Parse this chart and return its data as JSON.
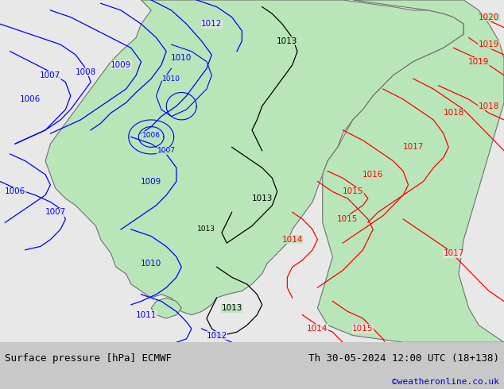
{
  "title_left": "Surface pressure [hPa] ECMWF",
  "title_right": "Th 30-05-2024 12:00 UTC (18+138)",
  "credit": "©weatheronline.co.uk",
  "bg_color": "#e8e8e8",
  "land_color": "#b8e6b8",
  "border_color": "#707070",
  "blue_color": "#0000ff",
  "red_color": "#ff0000",
  "black_color": "#000000",
  "footer_bg": "#c8c8c8",
  "footer_text_color": "#000000",
  "credit_color": "#0000cc",
  "figsize": [
    6.34,
    4.9
  ],
  "dpi": 100,
  "title_fontsize": 9,
  "label_fontsize": 7.5
}
